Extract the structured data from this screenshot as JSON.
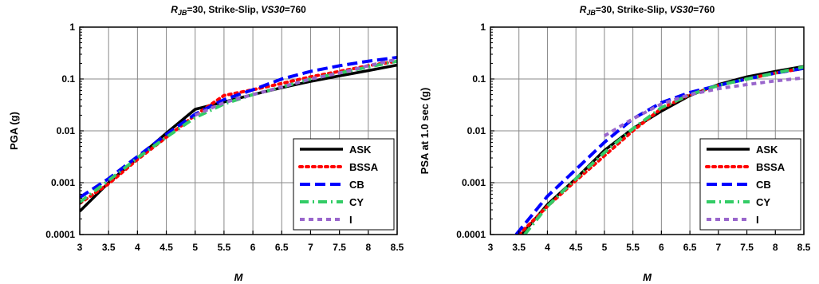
{
  "chart_data": [
    {
      "type": "line",
      "title": {
        "rjb_symbol": "R",
        "rjb_sub": "JB",
        "middle": "=30, Strike-Slip, ",
        "vs30": "VS30",
        "tail": "=760"
      },
      "xlabel": "M",
      "ylabel": "PGA (g)",
      "xscale": "linear",
      "yscale": "log",
      "xlim": [
        3,
        8.5
      ],
      "ylim": [
        0.0001,
        1
      ],
      "xticks": [
        "3",
        "3.5",
        "4",
        "4.5",
        "5",
        "5.5",
        "6",
        "6.5",
        "7",
        "7.5",
        "8",
        "8.5"
      ],
      "yticks": [
        "0.0001",
        "0.001",
        "0.01",
        "0.1",
        "1"
      ],
      "grid": true,
      "legend_position": "bottom-right",
      "series": [
        {
          "name": "ASK",
          "color": "#000000",
          "dash": "solid",
          "x": [
            3,
            3.5,
            4,
            4.5,
            5,
            5.5,
            6,
            6.5,
            7,
            7.5,
            8,
            8.5
          ],
          "y": [
            0.00028,
            0.001,
            0.003,
            0.009,
            0.026,
            0.036,
            0.05,
            0.068,
            0.09,
            0.115,
            0.145,
            0.185
          ]
        },
        {
          "name": "BSSA",
          "color": "#ff0000",
          "dash": "dot",
          "x": [
            3,
            3.5,
            4,
            4.5,
            5,
            5.5,
            6,
            6.5,
            7,
            7.5,
            8,
            8.5
          ],
          "y": [
            0.0004,
            0.00095,
            0.0028,
            0.0075,
            0.02,
            0.048,
            0.062,
            0.082,
            0.11,
            0.14,
            0.18,
            0.22
          ]
        },
        {
          "name": "CB",
          "color": "#0000ff",
          "dash": "longdash",
          "x": [
            3,
            3.5,
            4,
            4.5,
            5,
            5.5,
            6,
            6.5,
            7,
            7.5,
            8,
            8.5
          ],
          "y": [
            0.00052,
            0.0012,
            0.0032,
            0.0085,
            0.021,
            0.04,
            0.062,
            0.1,
            0.14,
            0.18,
            0.22,
            0.26
          ]
        },
        {
          "name": "CY",
          "color": "#33cc66",
          "dash": "dashdot",
          "x": [
            3,
            3.5,
            4,
            4.5,
            5,
            5.5,
            6,
            6.5,
            7,
            7.5,
            8,
            8.5
          ],
          "y": [
            0.00042,
            0.0011,
            0.003,
            0.0075,
            0.018,
            0.033,
            0.05,
            0.07,
            0.1,
            0.13,
            0.17,
            0.22
          ]
        },
        {
          "name": "I",
          "color": "#9966cc",
          "dash": "shortdash",
          "x": [
            5,
            5.5,
            6,
            6.5,
            7,
            7.5,
            8,
            8.5
          ],
          "y": [
            0.02,
            0.035,
            0.05,
            0.07,
            0.1,
            0.13,
            0.18,
            0.24
          ]
        }
      ]
    },
    {
      "type": "line",
      "title": {
        "rjb_symbol": "R",
        "rjb_sub": "JB",
        "middle": "=30, Strike-Slip, ",
        "vs30": "VS30",
        "tail": "=760"
      },
      "xlabel": "M",
      "ylabel": "PSA at 1.0 sec (g)",
      "xscale": "linear",
      "yscale": "log",
      "xlim": [
        3,
        8.5
      ],
      "ylim": [
        0.0001,
        1
      ],
      "xticks": [
        "3",
        "3.5",
        "4",
        "4.5",
        "5",
        "5.5",
        "6",
        "6.5",
        "7",
        "7.5",
        "8",
        "8.5"
      ],
      "yticks": [
        "0.0001",
        "0.001",
        "0.01",
        "0.1",
        "1"
      ],
      "grid": true,
      "legend_position": "bottom-right",
      "series": [
        {
          "name": "ASK",
          "color": "#000000",
          "dash": "solid",
          "x": [
            3.55,
            4,
            4.5,
            5,
            5.5,
            6,
            6.5,
            7,
            7.5,
            8,
            8.5
          ],
          "y": [
            0.0001,
            0.00038,
            0.0012,
            0.0042,
            0.011,
            0.024,
            0.048,
            0.078,
            0.11,
            0.14,
            0.175
          ]
        },
        {
          "name": "BSSA",
          "color": "#ff0000",
          "dash": "dot",
          "x": [
            3.5,
            4,
            4.5,
            5,
            5.5,
            6,
            6.5,
            7,
            7.5,
            8,
            8.5
          ],
          "y": [
            0.0001,
            0.00035,
            0.0011,
            0.0033,
            0.01,
            0.027,
            0.05,
            0.075,
            0.1,
            0.13,
            0.16
          ]
        },
        {
          "name": "CB",
          "color": "#0000ff",
          "dash": "longdash",
          "x": [
            3.45,
            4,
            4.5,
            5,
            5.5,
            6,
            6.5,
            7,
            7.5,
            8,
            8.5
          ],
          "y": [
            0.0001,
            0.00055,
            0.0018,
            0.006,
            0.017,
            0.035,
            0.055,
            0.075,
            0.1,
            0.13,
            0.16
          ]
        },
        {
          "name": "CY",
          "color": "#33cc66",
          "dash": "dashdot",
          "x": [
            3.6,
            4,
            4.5,
            5,
            5.5,
            6,
            6.5,
            7,
            7.5,
            8,
            8.5
          ],
          "y": [
            0.0001,
            0.00035,
            0.0012,
            0.0038,
            0.011,
            0.028,
            0.05,
            0.075,
            0.1,
            0.13,
            0.17
          ]
        },
        {
          "name": "I",
          "color": "#9966cc",
          "dash": "shortdash",
          "x": [
            5,
            5.5,
            6,
            6.5,
            7,
            7.5,
            8,
            8.5
          ],
          "y": [
            0.008,
            0.017,
            0.033,
            0.05,
            0.065,
            0.078,
            0.092,
            0.105
          ]
        }
      ]
    }
  ]
}
